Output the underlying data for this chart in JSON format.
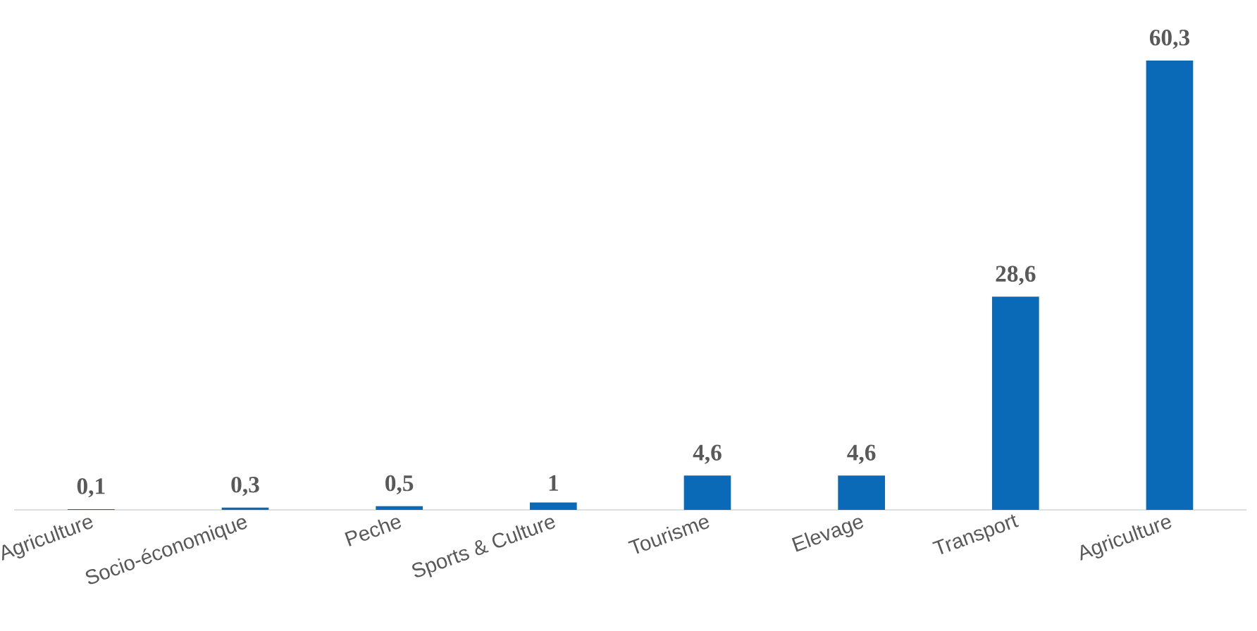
{
  "chart_data": {
    "type": "bar",
    "categories": [
      "Agriculture",
      "Socio-économique",
      "Peche",
      "Sports & Culture",
      "Tourisme",
      "Elevage",
      "Transport",
      "Agriculture"
    ],
    "values": [
      0.1,
      0.3,
      0.5,
      1,
      4.6,
      4.6,
      28.6,
      60.3
    ],
    "value_labels": [
      "0,1",
      "0,3",
      "0,5",
      "1",
      "4,6",
      "4,6",
      "28,6",
      "60,3"
    ],
    "color": "#0a6ab8"
  }
}
